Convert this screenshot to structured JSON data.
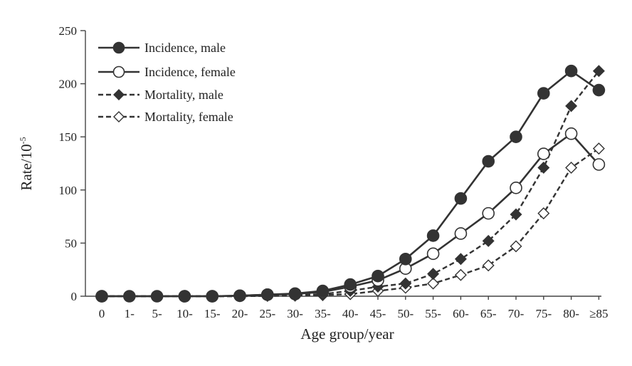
{
  "chart_data": {
    "type": "line",
    "title": "",
    "xlabel": "Age group/year",
    "ylabel": "Rate/10",
    "ylabel_superscript": "-5",
    "categories": [
      "0",
      "1-",
      "5-",
      "10-",
      "15-",
      "20-",
      "25-",
      "30-",
      "35-",
      "40-",
      "45-",
      "50-",
      "55-",
      "60-",
      "65-",
      "70-",
      "75-",
      "80-",
      "≥85"
    ],
    "ylim": [
      0,
      250
    ],
    "yticks": [
      0,
      50,
      100,
      150,
      200,
      250
    ],
    "grid": false,
    "legend_position": "top-left",
    "series": [
      {
        "name": "Incidence, male",
        "line_style": "solid",
        "marker": "circle",
        "marker_fill": "#333333",
        "color": "#333333",
        "values": [
          0,
          0,
          0,
          0,
          0,
          0.5,
          1.5,
          2.5,
          5,
          11,
          19,
          35,
          57,
          92,
          127,
          150,
          191,
          212,
          194
        ]
      },
      {
        "name": "Incidence, female",
        "line_style": "solid",
        "marker": "circle",
        "marker_fill": "#ffffff",
        "color": "#333333",
        "values": [
          0,
          null,
          null,
          0,
          0,
          0.5,
          1.5,
          2,
          4,
          9,
          15,
          26,
          40,
          59,
          78,
          102,
          134,
          153,
          124
        ]
      },
      {
        "name": "Mortality, male",
        "line_style": "dashed",
        "marker": "diamond",
        "marker_fill": "#333333",
        "color": "#333333",
        "values": [
          0,
          0,
          0,
          0,
          0,
          0,
          0.5,
          1,
          2,
          5,
          9,
          12,
          21,
          35,
          52,
          77,
          121,
          179,
          212
        ]
      },
      {
        "name": "Mortality, female",
        "line_style": "dashed",
        "marker": "diamond",
        "marker_fill": "#ffffff",
        "color": "#333333",
        "values": [
          0,
          null,
          null,
          0,
          0,
          0,
          0.3,
          0.5,
          1,
          2,
          5,
          8,
          12,
          20,
          29,
          47,
          78,
          121,
          139
        ]
      }
    ]
  }
}
